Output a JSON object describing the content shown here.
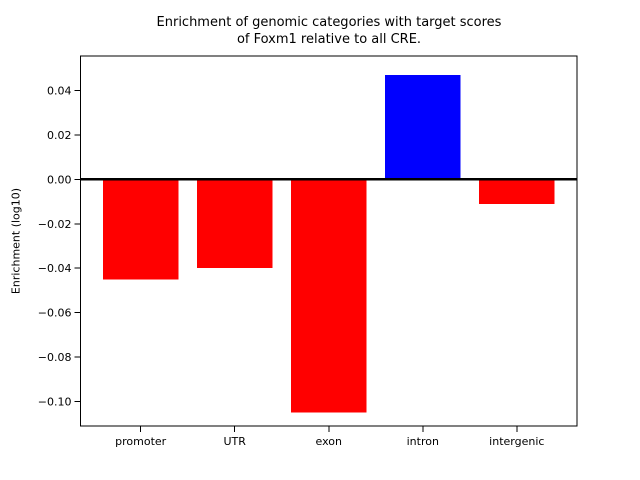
{
  "chart_data": {
    "type": "bar",
    "title": "Enrichment of genomic categories with target scores\nof Foxm1 relative to all CRE.",
    "xlabel": "",
    "ylabel": "Enrichment (log10)",
    "categories": [
      "promoter",
      "UTR",
      "exon",
      "intron",
      "intergenic"
    ],
    "values": [
      -0.045,
      -0.04,
      -0.105,
      0.047,
      -0.011
    ],
    "bar_colors": [
      "#ff0000",
      "#ff0000",
      "#ff0000",
      "#0000ff",
      "#ff0000"
    ],
    "positive_color": "#0000ff",
    "negative_color": "#ff0000",
    "ylim": [
      -0.111,
      0.0555
    ],
    "yticks": [
      0.04,
      0.02,
      0.0,
      -0.02,
      -0.04,
      -0.06,
      -0.08,
      -0.1
    ],
    "ytick_labels": [
      "0.04",
      "0.02",
      "0.00",
      "−0.02",
      "−0.04",
      "−0.06",
      "−0.08",
      "−0.10"
    ],
    "zero_line": true,
    "grid": false,
    "legend": null
  }
}
